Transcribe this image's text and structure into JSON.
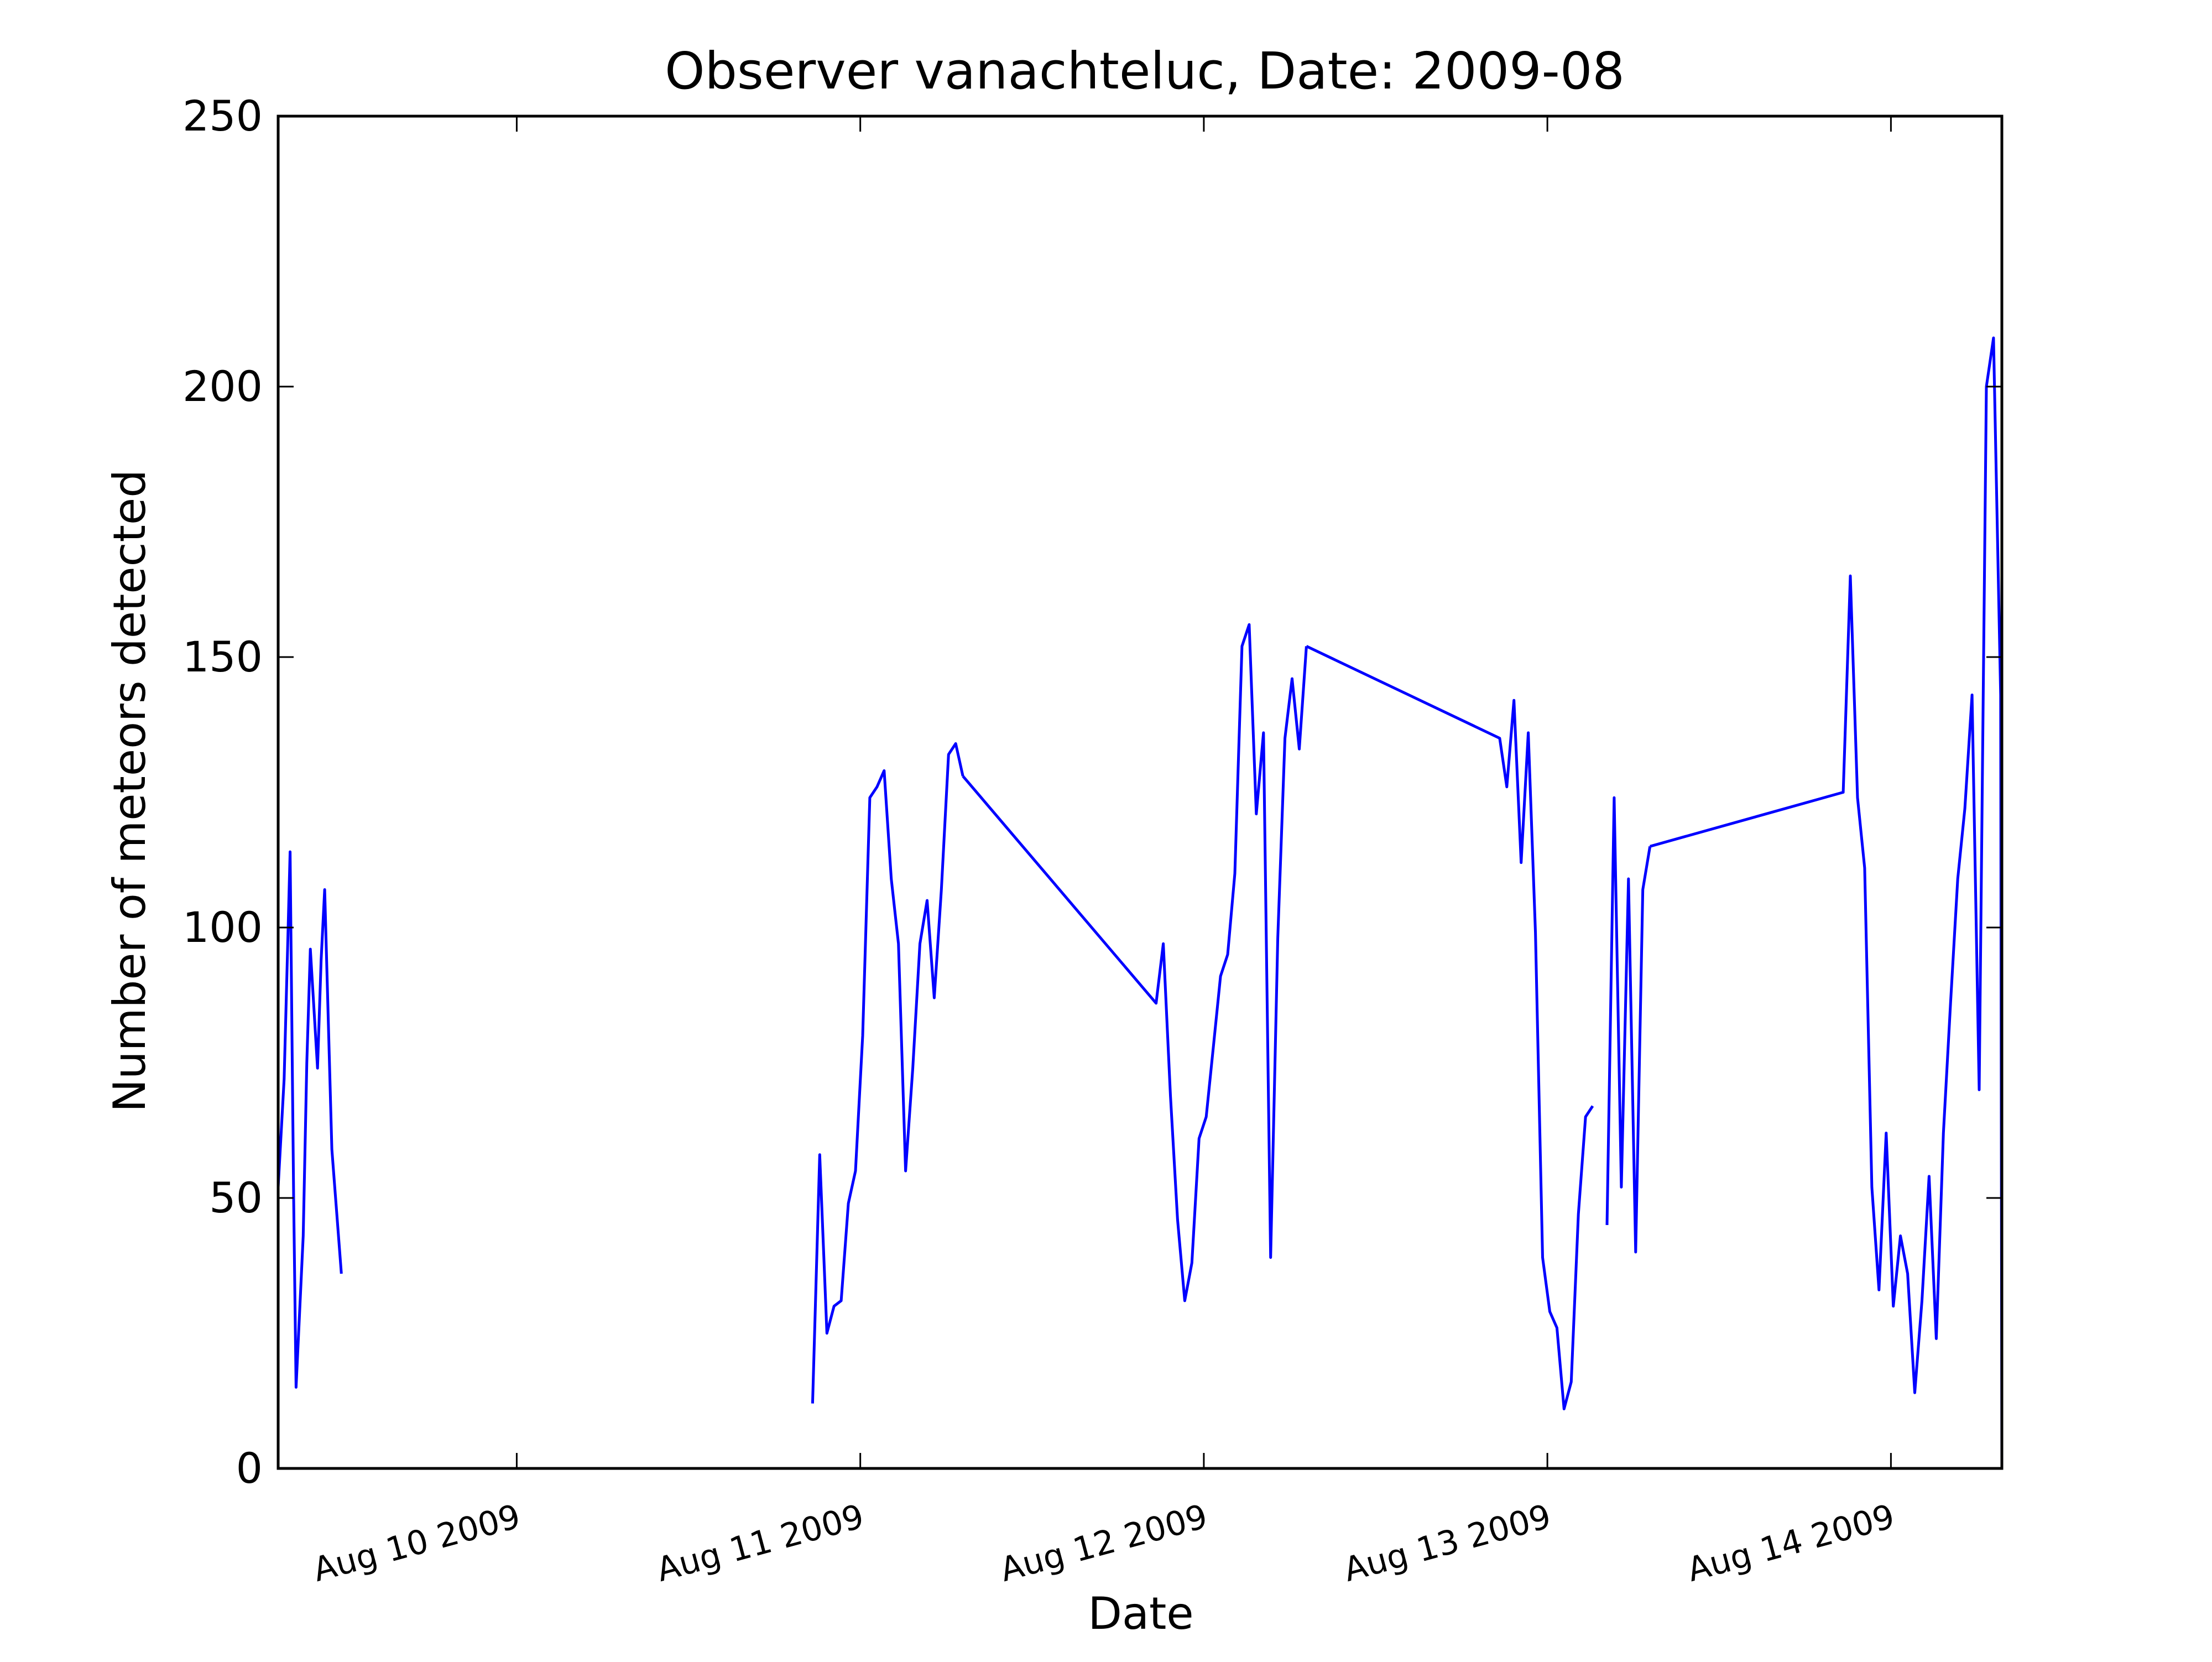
{
  "chart_data": {
    "type": "line",
    "title": "Observer vanachteluc, Date: 2009-08",
    "xlabel": "Date",
    "ylabel": "Number of meteors detected",
    "xlim": [
      "2009-08-09 07:20",
      "2009-08-14 07:45"
    ],
    "ylim": [
      0,
      250
    ],
    "x_ticks": [
      {
        "value": "2009-08-10 00:00",
        "label": "Aug 10 2009"
      },
      {
        "value": "2009-08-11 00:00",
        "label": "Aug 11 2009"
      },
      {
        "value": "2009-08-12 00:00",
        "label": "Aug 12 2009"
      },
      {
        "value": "2009-08-13 00:00",
        "label": "Aug 13 2009"
      },
      {
        "value": "2009-08-14 00:00",
        "label": "Aug 14 2009"
      }
    ],
    "y_ticks": [
      0,
      50,
      100,
      150,
      200,
      250
    ],
    "grid": false,
    "line_color": "#0000ff",
    "series": [
      {
        "segments": [
          [
            [
              "2009-08-09 07:20",
              52
            ],
            [
              "2009-08-09 07:45",
              72
            ],
            [
              "2009-08-09 08:00",
              97
            ],
            [
              "2009-08-09 08:10",
              114
            ],
            [
              "2009-08-09 08:25",
              50
            ],
            [
              "2009-08-09 08:35",
              15
            ],
            [
              "2009-08-09 09:05",
              43
            ],
            [
              "2009-08-09 09:20",
              75
            ],
            [
              "2009-08-09 09:35",
              96
            ],
            [
              "2009-08-09 10:05",
              74
            ],
            [
              "2009-08-09 10:20",
              94
            ],
            [
              "2009-08-09 10:35",
              107
            ],
            [
              "2009-08-09 11:05",
              59
            ],
            [
              "2009-08-09 11:45",
              36
            ]
          ],
          [
            [
              "2009-08-10 20:40",
              12
            ],
            [
              "2009-08-10 21:10",
              58
            ],
            [
              "2009-08-10 21:40",
              25
            ],
            [
              "2009-08-10 22:10",
              30
            ],
            [
              "2009-08-10 22:40",
              31
            ],
            [
              "2009-08-10 23:10",
              49
            ],
            [
              "2009-08-10 23:40",
              55
            ],
            [
              "2009-08-11 00:10",
              80
            ],
            [
              "2009-08-11 00:40",
              124
            ],
            [
              "2009-08-11 01:10",
              126
            ],
            [
              "2009-08-11 01:40",
              129
            ],
            [
              "2009-08-11 02:10",
              109
            ],
            [
              "2009-08-11 02:40",
              97
            ],
            [
              "2009-08-11 03:10",
              55
            ],
            [
              "2009-08-11 03:40",
              74
            ],
            [
              "2009-08-11 04:10",
              97
            ],
            [
              "2009-08-11 04:40",
              105
            ],
            [
              "2009-08-11 05:10",
              87
            ],
            [
              "2009-08-11 05:40",
              107
            ],
            [
              "2009-08-11 06:10",
              132
            ],
            [
              "2009-08-11 06:40",
              134
            ],
            [
              "2009-08-11 07:10",
              128
            ]
          ],
          [
            [
              "2009-08-11 07:10",
              128
            ],
            [
              "2009-08-11 20:40",
              86
            ],
            [
              "2009-08-11 21:10",
              97
            ],
            [
              "2009-08-11 21:40",
              69
            ],
            [
              "2009-08-11 22:10",
              46
            ],
            [
              "2009-08-11 22:40",
              31
            ],
            [
              "2009-08-11 23:10",
              38
            ],
            [
              "2009-08-11 23:40",
              61
            ],
            [
              "2009-08-12 00:10",
              65
            ],
            [
              "2009-08-12 00:40",
              78
            ],
            [
              "2009-08-12 01:10",
              91
            ],
            [
              "2009-08-12 01:40",
              95
            ],
            [
              "2009-08-12 02:10",
              110
            ],
            [
              "2009-08-12 02:40",
              152
            ],
            [
              "2009-08-12 03:10",
              156
            ],
            [
              "2009-08-12 03:40",
              121
            ],
            [
              "2009-08-12 04:10",
              136
            ],
            [
              "2009-08-12 04:40",
              39
            ],
            [
              "2009-08-12 05:10",
              98
            ],
            [
              "2009-08-12 05:40",
              135
            ],
            [
              "2009-08-12 06:10",
              146
            ],
            [
              "2009-08-12 06:40",
              133
            ],
            [
              "2009-08-12 07:10",
              152
            ]
          ],
          [
            [
              "2009-08-12 07:10",
              152
            ],
            [
              "2009-08-12 20:40",
              135
            ],
            [
              "2009-08-12 21:10",
              126
            ],
            [
              "2009-08-12 21:40",
              142
            ],
            [
              "2009-08-12 22:10",
              112
            ],
            [
              "2009-08-12 22:40",
              136
            ],
            [
              "2009-08-12 23:10",
              99
            ],
            [
              "2009-08-12 23:40",
              39
            ],
            [
              "2009-08-13 00:10",
              29
            ],
            [
              "2009-08-13 00:40",
              26
            ],
            [
              "2009-08-13 01:10",
              11
            ],
            [
              "2009-08-13 01:40",
              16
            ],
            [
              "2009-08-13 02:10",
              47
            ],
            [
              "2009-08-13 02:40",
              65
            ],
            [
              "2009-08-13 03:10",
              67
            ]
          ],
          [
            [
              "2009-08-13 04:10",
              45
            ],
            [
              "2009-08-13 04:40",
              124
            ],
            [
              "2009-08-13 05:10",
              52
            ],
            [
              "2009-08-13 05:40",
              109
            ],
            [
              "2009-08-13 06:10",
              40
            ],
            [
              "2009-08-13 06:40",
              107
            ],
            [
              "2009-08-13 07:10",
              115
            ]
          ],
          [
            [
              "2009-08-13 07:10",
              115
            ],
            [
              "2009-08-13 20:40",
              125
            ],
            [
              "2009-08-13 21:10",
              165
            ],
            [
              "2009-08-13 21:40",
              124
            ],
            [
              "2009-08-13 22:10",
              111
            ],
            [
              "2009-08-13 22:40",
              52
            ],
            [
              "2009-08-13 23:10",
              33
            ],
            [
              "2009-08-13 23:40",
              62
            ],
            [
              "2009-08-14 00:10",
              30
            ],
            [
              "2009-08-14 00:40",
              43
            ],
            [
              "2009-08-14 01:10",
              36
            ],
            [
              "2009-08-14 01:40",
              14
            ],
            [
              "2009-08-14 02:10",
              31
            ],
            [
              "2009-08-14 02:40",
              54
            ],
            [
              "2009-08-14 03:10",
              24
            ],
            [
              "2009-08-14 03:40",
              62
            ],
            [
              "2009-08-14 04:10",
              86
            ],
            [
              "2009-08-14 04:40",
              109
            ],
            [
              "2009-08-14 05:10",
              122
            ],
            [
              "2009-08-14 05:40",
              143
            ],
            [
              "2009-08-14 06:10",
              70
            ],
            [
              "2009-08-14 06:40",
              200
            ],
            [
              "2009-08-14 07:10",
              209
            ],
            [
              "2009-08-14 07:40",
              143
            ],
            [
              "2009-08-14 07:45",
              0
            ]
          ]
        ]
      }
    ]
  }
}
